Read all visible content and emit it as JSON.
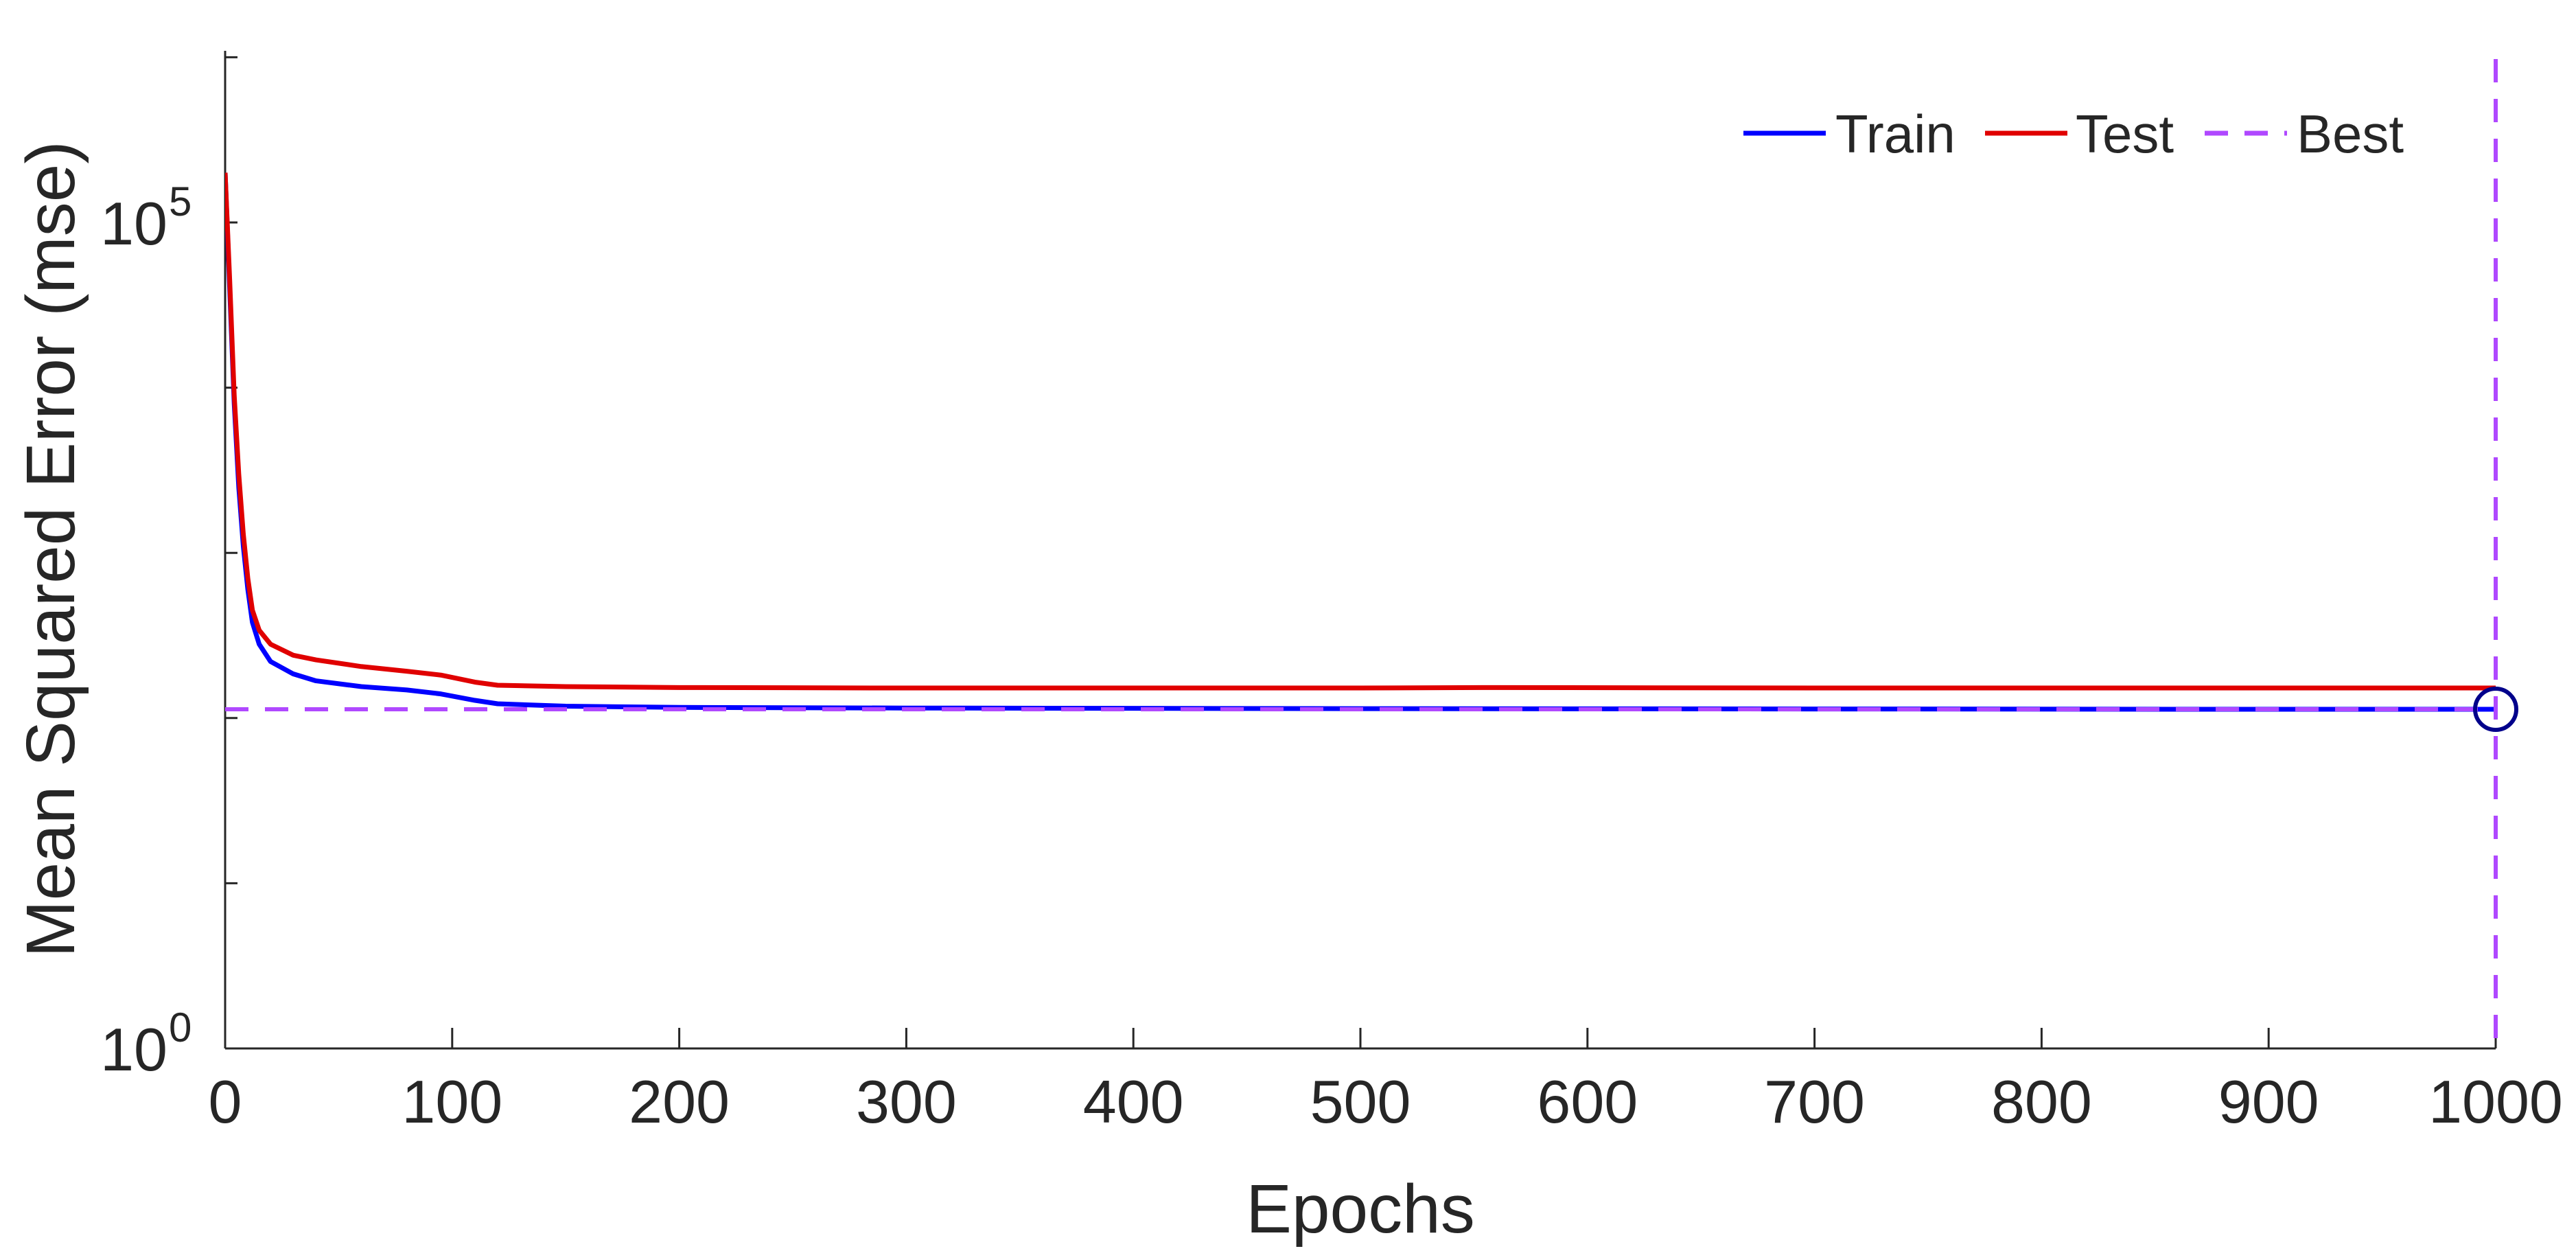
{
  "chart_data": {
    "type": "line",
    "xlabel": "Epochs",
    "ylabel": "Mean Squared Error  (mse)",
    "xlim": [
      0,
      1000
    ],
    "yscale": "log",
    "ylim": [
      1,
      10000000
    ],
    "x_ticks": [
      "0",
      "100",
      "200",
      "300",
      "400",
      "500",
      "600",
      "700",
      "800",
      "900",
      "1000"
    ],
    "x_tick_values": [
      0,
      100,
      200,
      300,
      400,
      500,
      600,
      700,
      800,
      900,
      1000
    ],
    "y_ticks": [
      {
        "value": 1,
        "base": "10",
        "exponent": "0"
      },
      {
        "value": 100000,
        "base": "10",
        "exponent": "5"
      }
    ],
    "y_minor_ticks": [
      10,
      100,
      1000,
      10000,
      1000000,
      10000000
    ],
    "grid": false,
    "legend": {
      "placement": "top-right",
      "entries": [
        "Train",
        "Test",
        "Best"
      ]
    },
    "series": [
      {
        "name": "Train",
        "color": "#0000ff",
        "style": "solid",
        "points": [
          [
            0,
            200000
          ],
          [
            2,
            40000
          ],
          [
            4,
            8000
          ],
          [
            6,
            2500
          ],
          [
            8,
            1100
          ],
          [
            10,
            600
          ],
          [
            12,
            380
          ],
          [
            15,
            280
          ],
          [
            20,
            220
          ],
          [
            30,
            185
          ],
          [
            40,
            168
          ],
          [
            60,
            155
          ],
          [
            80,
            148
          ],
          [
            95,
            140
          ],
          [
            110,
            128
          ],
          [
            120,
            122
          ],
          [
            150,
            118
          ],
          [
            200,
            116
          ],
          [
            300,
            115
          ],
          [
            500,
            114
          ],
          [
            700,
            113.5
          ],
          [
            900,
            113
          ],
          [
            1000,
            113
          ]
        ]
      },
      {
        "name": "Test",
        "color": "#e00000",
        "style": "solid",
        "points": [
          [
            0,
            200000
          ],
          [
            2,
            45000
          ],
          [
            4,
            9000
          ],
          [
            6,
            3000
          ],
          [
            8,
            1300
          ],
          [
            10,
            700
          ],
          [
            12,
            450
          ],
          [
            15,
            340
          ],
          [
            20,
            280
          ],
          [
            30,
            240
          ],
          [
            40,
            225
          ],
          [
            60,
            205
          ],
          [
            80,
            192
          ],
          [
            95,
            182
          ],
          [
            110,
            165
          ],
          [
            120,
            158
          ],
          [
            150,
            155
          ],
          [
            200,
            153
          ],
          [
            300,
            152
          ],
          [
            500,
            152
          ],
          [
            560,
            153
          ],
          [
            700,
            152
          ],
          [
            900,
            152
          ],
          [
            1000,
            152
          ]
        ]
      },
      {
        "name": "Best",
        "color": "#b048ff",
        "style": "dashed",
        "horizontal_y": 113,
        "vertical_x": 1000
      }
    ],
    "best_marker": {
      "x": 1000,
      "y": 113,
      "color": "#00008b",
      "shape": "circle"
    }
  }
}
